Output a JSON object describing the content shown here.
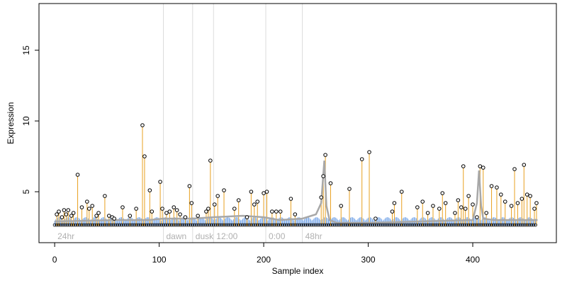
{
  "chart_data": {
    "type": "scatter",
    "title": "",
    "xlabel": "Sample index",
    "ylabel": "Expression",
    "xlim": [
      -15,
      480
    ],
    "ylim": [
      1.4,
      18.3
    ],
    "x_ticks": [
      0,
      100,
      200,
      300,
      400
    ],
    "y_ticks": [
      5,
      10,
      15
    ],
    "grid": false,
    "legend": "none",
    "baseline": 2.6,
    "colors": {
      "point_outline": "#000000",
      "peak_stem": "#e8a020",
      "baseline_stem": "#7aa8e8",
      "smooth_line": "#a8a8a8",
      "phase_divider": "#dcdcdc"
    },
    "phase_markers": [
      {
        "x": 0,
        "label": "24hr"
      },
      {
        "x": 104,
        "label": "dawn"
      },
      {
        "x": 132,
        "label": "dusk"
      },
      {
        "x": 152,
        "label": "12:00"
      },
      {
        "x": 202,
        "label": "0:00"
      },
      {
        "x": 237,
        "label": "48hr"
      }
    ],
    "smooth_line": {
      "x": [
        0,
        30,
        60,
        90,
        104,
        132,
        152,
        180,
        200,
        215,
        237,
        250,
        255,
        258,
        260,
        263,
        270,
        300,
        350,
        400,
        404,
        406,
        408,
        410,
        420,
        462
      ],
      "y": [
        2.9,
        2.95,
        3.0,
        3.0,
        3.1,
        3.1,
        3.2,
        3.3,
        3.2,
        3.0,
        3.1,
        3.4,
        4.2,
        7.2,
        4.0,
        3.0,
        2.8,
        2.8,
        2.9,
        3.0,
        4.2,
        6.5,
        4.0,
        3.1,
        3.0,
        3.0
      ]
    },
    "peaks": {
      "x": [
        2,
        4,
        7,
        9,
        11,
        13,
        16,
        18,
        22,
        26,
        31,
        33,
        36,
        40,
        42,
        48,
        52,
        55,
        57,
        65,
        72,
        78,
        84,
        86,
        91,
        93,
        101,
        103,
        107,
        110,
        114,
        117,
        120,
        125,
        129,
        131,
        137,
        145,
        147,
        149,
        153,
        156,
        162,
        172,
        176,
        184,
        188,
        191,
        194,
        200,
        203,
        208,
        212,
        216,
        226,
        230,
        255,
        257,
        259,
        264,
        274,
        282,
        294,
        301,
        307,
        323,
        325,
        332,
        347,
        352,
        357,
        362,
        368,
        371,
        374,
        383,
        386,
        389,
        391,
        393,
        396,
        400,
        404,
        407,
        410,
        413,
        418,
        423,
        427,
        431,
        437,
        440,
        443,
        447,
        449,
        452,
        455,
        459,
        461
      ],
      "y": [
        3.4,
        3.6,
        3.2,
        3.7,
        3.4,
        3.7,
        3.3,
        3.5,
        6.2,
        3.9,
        4.3,
        3.8,
        4.0,
        3.3,
        3.5,
        4.7,
        3.3,
        3.2,
        3.1,
        3.9,
        3.3,
        3.8,
        9.7,
        7.5,
        5.1,
        3.6,
        5.7,
        3.8,
        3.5,
        3.6,
        3.9,
        3.7,
        3.4,
        3.2,
        5.4,
        4.2,
        3.3,
        3.6,
        3.8,
        7.2,
        4.1,
        4.7,
        5.1,
        3.8,
        4.4,
        3.2,
        5.0,
        4.1,
        4.3,
        4.9,
        5.0,
        3.6,
        3.6,
        3.6,
        4.5,
        3.4,
        4.6,
        6.1,
        7.6,
        5.6,
        4.0,
        5.2,
        7.3,
        7.8,
        3.1,
        3.6,
        4.2,
        5.0,
        3.9,
        4.3,
        3.5,
        4.0,
        3.8,
        4.9,
        4.2,
        3.5,
        4.4,
        3.9,
        6.8,
        3.8,
        4.7,
        4.1,
        3.2,
        6.8,
        6.7,
        3.5,
        5.4,
        5.3,
        4.8,
        4.3,
        4.0,
        6.6,
        4.2,
        4.5,
        6.9,
        4.8,
        4.7,
        3.8,
        4.2
      ]
    }
  }
}
